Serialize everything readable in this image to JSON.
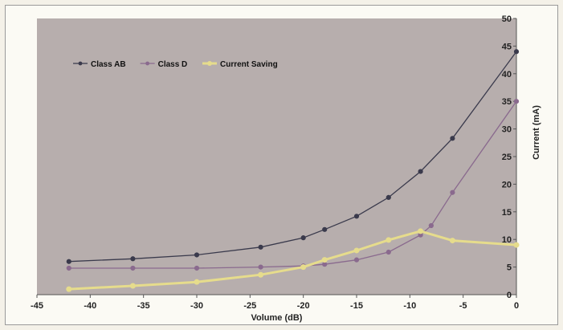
{
  "chart_data": {
    "type": "line",
    "title": "",
    "xlabel": "Volume (dB)",
    "ylabel": "Current (mA)",
    "xlim": [
      -45,
      0
    ],
    "ylim": [
      0,
      50
    ],
    "x_ticks": [
      -45,
      -40,
      -35,
      -30,
      -25,
      -20,
      -15,
      -10,
      -5,
      0
    ],
    "y_ticks": [
      0,
      5,
      10,
      15,
      20,
      25,
      30,
      35,
      40,
      45,
      50
    ],
    "y_axis_position": "right",
    "grid": false,
    "legend_position": "top-left",
    "plot_background": "#b7aead",
    "series": [
      {
        "name": "Class AB",
        "color": "#3a3a4c",
        "x": [
          -42,
          -36,
          -30,
          -24,
          -20,
          -18,
          -15,
          -12,
          -9,
          -6,
          0
        ],
        "values": [
          6.0,
          6.5,
          7.2,
          8.6,
          10.3,
          11.8,
          14.2,
          17.6,
          22.3,
          28.3,
          44.0
        ]
      },
      {
        "name": "Class D",
        "color": "#8a6a8e",
        "x": [
          -42,
          -36,
          -30,
          -24,
          -20,
          -18,
          -15,
          -12,
          -9,
          -8,
          -6,
          0
        ],
        "values": [
          4.8,
          4.8,
          4.8,
          5.0,
          5.2,
          5.5,
          6.3,
          7.7,
          10.8,
          12.5,
          18.5,
          35.0
        ]
      },
      {
        "name": "Current Saving",
        "color": "#e6dc8c",
        "x": [
          -42,
          -36,
          -30,
          -24,
          -20,
          -18,
          -15,
          -12,
          -9,
          -6,
          0
        ],
        "values": [
          1.0,
          1.6,
          2.3,
          3.6,
          5.0,
          6.3,
          8.0,
          9.9,
          11.5,
          9.8,
          9.0
        ]
      }
    ]
  }
}
